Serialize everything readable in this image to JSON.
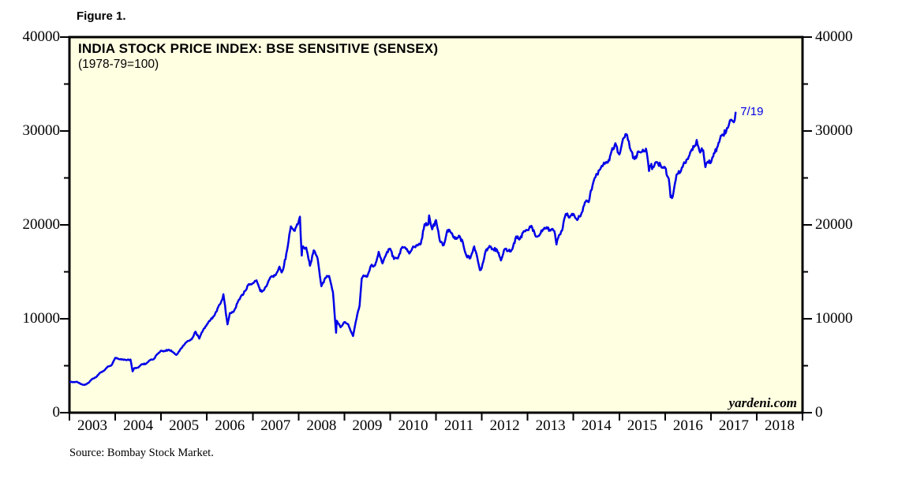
{
  "figure_label": "Figure 1.",
  "chart_title": "INDIA STOCK PRICE INDEX: BSE SENSITIVE (SENSEX)",
  "chart_subtitle": "(1978-79=100)",
  "watermark": "yardeni.com",
  "source_note": "Source: Bombay Stock Market.",
  "colors": {
    "line": "#0000E8",
    "plot_background": "#FFFFE2",
    "axis": "#000000",
    "text": "#000000",
    "annotation_text": "#0000E8"
  },
  "chart_data": {
    "type": "line",
    "title": "INDIA STOCK PRICE INDEX: BSE SENSITIVE (SENSEX)",
    "subtitle": "(1978-79=100)",
    "grid": false,
    "legend": null,
    "x_axis": {
      "start_year": 2003,
      "end_year": 2019,
      "tick_years": [
        2003,
        2004,
        2005,
        2006,
        2007,
        2008,
        2009,
        2010,
        2011,
        2012,
        2013,
        2014,
        2015,
        2016,
        2017,
        2018,
        2019
      ],
      "year_labels": [
        "2003",
        "2004",
        "2005",
        "2006",
        "2007",
        "2008",
        "2009",
        "2010",
        "2011",
        "2012",
        "2013",
        "2014",
        "2015",
        "2016",
        "2017",
        "2018"
      ]
    },
    "y_axis": {
      "min": 0,
      "max": 40000,
      "major_ticks": [
        0,
        10000,
        20000,
        30000,
        40000
      ],
      "tick_labels": [
        "0",
        "10000",
        "20000",
        "30000",
        "40000"
      ],
      "minor_ticks": [
        5000,
        15000,
        25000,
        35000
      ]
    },
    "annotation": {
      "label": "7/19",
      "x": 2017.54,
      "y": 31955
    },
    "series": [
      {
        "name": "BSE Sensex stock price index",
        "points": [
          [
            2003.0,
            3262
          ],
          [
            2003.083,
            3250
          ],
          [
            2003.167,
            3284
          ],
          [
            2003.25,
            3048
          ],
          [
            2003.333,
            2960
          ],
          [
            2003.417,
            3180
          ],
          [
            2003.5,
            3607
          ],
          [
            2003.583,
            3793
          ],
          [
            2003.667,
            4244
          ],
          [
            2003.75,
            4453
          ],
          [
            2003.833,
            4907
          ],
          [
            2003.917,
            5044
          ],
          [
            2004.0,
            5839
          ],
          [
            2004.083,
            5696
          ],
          [
            2004.167,
            5668
          ],
          [
            2004.25,
            5591
          ],
          [
            2004.333,
            5655
          ],
          [
            2004.38,
            4400
          ],
          [
            2004.417,
            4760
          ],
          [
            2004.5,
            4795
          ],
          [
            2004.583,
            5170
          ],
          [
            2004.667,
            5192
          ],
          [
            2004.75,
            5584
          ],
          [
            2004.833,
            5672
          ],
          [
            2004.917,
            6234
          ],
          [
            2005.0,
            6603
          ],
          [
            2005.083,
            6556
          ],
          [
            2005.167,
            6714
          ],
          [
            2005.25,
            6493
          ],
          [
            2005.333,
            6154
          ],
          [
            2005.417,
            6715
          ],
          [
            2005.5,
            7194
          ],
          [
            2005.583,
            7635
          ],
          [
            2005.667,
            7805
          ],
          [
            2005.75,
            8634
          ],
          [
            2005.833,
            7892
          ],
          [
            2005.917,
            8789
          ],
          [
            2006.0,
            9398
          ],
          [
            2006.083,
            9920
          ],
          [
            2006.167,
            10370
          ],
          [
            2006.25,
            11280
          ],
          [
            2006.333,
            12043
          ],
          [
            2006.36,
            12612
          ],
          [
            2006.45,
            9400
          ],
          [
            2006.5,
            10609
          ],
          [
            2006.583,
            10744
          ],
          [
            2006.667,
            11699
          ],
          [
            2006.75,
            12454
          ],
          [
            2006.833,
            12962
          ],
          [
            2006.917,
            13696
          ],
          [
            2007.0,
            13787
          ],
          [
            2007.083,
            14091
          ],
          [
            2007.167,
            12938
          ],
          [
            2007.25,
            13072
          ],
          [
            2007.333,
            13872
          ],
          [
            2007.417,
            14544
          ],
          [
            2007.5,
            14651
          ],
          [
            2007.583,
            15551
          ],
          [
            2007.63,
            14936
          ],
          [
            2007.667,
            15319
          ],
          [
            2007.75,
            17291
          ],
          [
            2007.833,
            19838
          ],
          [
            2007.917,
            19363
          ],
          [
            2008.0,
            20287
          ],
          [
            2008.03,
            20873
          ],
          [
            2008.07,
            16730
          ],
          [
            2008.083,
            17649
          ],
          [
            2008.167,
            17579
          ],
          [
            2008.25,
            15644
          ],
          [
            2008.333,
            17287
          ],
          [
            2008.417,
            16416
          ],
          [
            2008.5,
            13462
          ],
          [
            2008.583,
            14356
          ],
          [
            2008.667,
            14565
          ],
          [
            2008.75,
            12860
          ],
          [
            2008.82,
            8510
          ],
          [
            2008.833,
            9788
          ],
          [
            2008.917,
            9093
          ],
          [
            2009.0,
            9647
          ],
          [
            2009.083,
            9424
          ],
          [
            2009.19,
            8160
          ],
          [
            2009.25,
            9709
          ],
          [
            2009.333,
            11403
          ],
          [
            2009.38,
            14284
          ],
          [
            2009.417,
            14625
          ],
          [
            2009.5,
            14494
          ],
          [
            2009.583,
            15670
          ],
          [
            2009.667,
            15667
          ],
          [
            2009.75,
            17127
          ],
          [
            2009.833,
            15896
          ],
          [
            2009.917,
            16926
          ],
          [
            2010.0,
            17465
          ],
          [
            2010.083,
            16358
          ],
          [
            2010.167,
            16430
          ],
          [
            2010.25,
            17528
          ],
          [
            2010.333,
            17559
          ],
          [
            2010.417,
            16945
          ],
          [
            2010.5,
            17701
          ],
          [
            2010.583,
            17868
          ],
          [
            2010.667,
            17971
          ],
          [
            2010.75,
            20069
          ],
          [
            2010.833,
            20032
          ],
          [
            2010.85,
            21005
          ],
          [
            2010.917,
            19521
          ],
          [
            2011.0,
            20509
          ],
          [
            2011.083,
            18328
          ],
          [
            2011.167,
            17823
          ],
          [
            2011.25,
            19445
          ],
          [
            2011.333,
            19136
          ],
          [
            2011.417,
            18503
          ],
          [
            2011.5,
            18846
          ],
          [
            2011.583,
            18197
          ],
          [
            2011.667,
            16677
          ],
          [
            2011.75,
            16454
          ],
          [
            2011.833,
            17705
          ],
          [
            2011.917,
            16123
          ],
          [
            2011.96,
            15175
          ],
          [
            2012.0,
            15455
          ],
          [
            2012.083,
            17194
          ],
          [
            2012.167,
            17753
          ],
          [
            2012.25,
            17404
          ],
          [
            2012.333,
            17319
          ],
          [
            2012.417,
            16219
          ],
          [
            2012.5,
            17430
          ],
          [
            2012.583,
            17236
          ],
          [
            2012.667,
            17430
          ],
          [
            2012.75,
            18763
          ],
          [
            2012.833,
            18505
          ],
          [
            2012.917,
            19340
          ],
          [
            2013.0,
            19427
          ],
          [
            2013.083,
            19895
          ],
          [
            2013.167,
            18862
          ],
          [
            2013.25,
            18836
          ],
          [
            2013.333,
            19504
          ],
          [
            2013.417,
            19760
          ],
          [
            2013.5,
            19396
          ],
          [
            2013.583,
            19346
          ],
          [
            2013.63,
            17906
          ],
          [
            2013.667,
            18620
          ],
          [
            2013.75,
            19380
          ],
          [
            2013.833,
            21165
          ],
          [
            2013.917,
            20792
          ],
          [
            2014.0,
            21171
          ],
          [
            2014.083,
            20514
          ],
          [
            2014.167,
            21120
          ],
          [
            2014.25,
            22386
          ],
          [
            2014.333,
            22418
          ],
          [
            2014.417,
            24217
          ],
          [
            2014.5,
            25414
          ],
          [
            2014.583,
            25895
          ],
          [
            2014.667,
            26638
          ],
          [
            2014.75,
            26631
          ],
          [
            2014.833,
            27866
          ],
          [
            2014.917,
            28694
          ],
          [
            2015.0,
            27499
          ],
          [
            2015.083,
            29183
          ],
          [
            2015.17,
            29594
          ],
          [
            2015.25,
            27957
          ],
          [
            2015.333,
            27011
          ],
          [
            2015.417,
            27828
          ],
          [
            2015.5,
            27781
          ],
          [
            2015.583,
            28115
          ],
          [
            2015.65,
            25741
          ],
          [
            2015.667,
            26283
          ],
          [
            2015.75,
            26155
          ],
          [
            2015.833,
            26657
          ],
          [
            2015.917,
            26146
          ],
          [
            2016.0,
            26118
          ],
          [
            2016.083,
            24871
          ],
          [
            2016.12,
            22952
          ],
          [
            2016.167,
            23002
          ],
          [
            2016.25,
            25342
          ],
          [
            2016.333,
            25607
          ],
          [
            2016.417,
            26668
          ],
          [
            2016.5,
            26999
          ],
          [
            2016.583,
            28052
          ],
          [
            2016.667,
            28452
          ],
          [
            2016.69,
            29045
          ],
          [
            2016.75,
            27866
          ],
          [
            2016.833,
            27930
          ],
          [
            2016.88,
            26150
          ],
          [
            2016.917,
            26653
          ],
          [
            2017.0,
            26626
          ],
          [
            2017.083,
            27656
          ],
          [
            2017.167,
            28743
          ],
          [
            2017.25,
            29621
          ],
          [
            2017.333,
            29918
          ],
          [
            2017.417,
            31146
          ],
          [
            2017.5,
            30922
          ],
          [
            2017.54,
            31955
          ]
        ]
      }
    ]
  }
}
